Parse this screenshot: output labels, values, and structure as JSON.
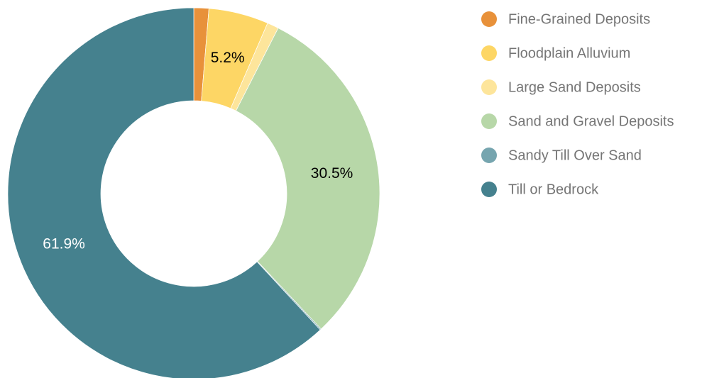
{
  "chart_data": {
    "type": "pie",
    "categories": [
      "Fine-Grained Deposits",
      "Floodplain Alluvium",
      "Large Sand Deposits",
      "Sand and Gravel Deposits",
      "Sandy Till Over Sand",
      "Till or Bedrock"
    ],
    "values": [
      1.3,
      5.2,
      1.0,
      30.5,
      0.1,
      61.9
    ],
    "value_labels": [
      null,
      "5.2%",
      null,
      "30.5%",
      null,
      "61.9%"
    ],
    "colors": [
      "#e8913a",
      "#fdd665",
      "#fde59b",
      "#b7d7a8",
      "#76a5af",
      "#45818e"
    ],
    "donut": true
  }
}
